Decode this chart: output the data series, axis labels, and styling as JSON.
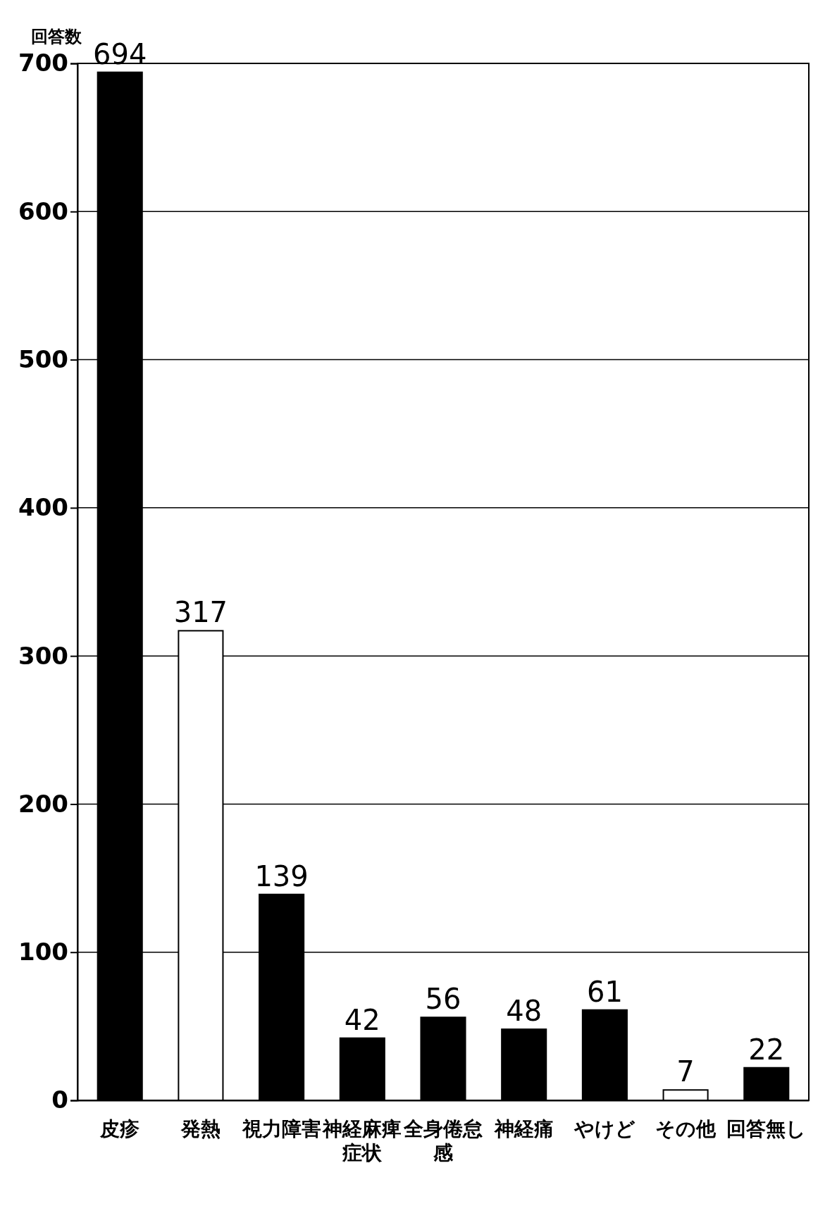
{
  "chart_data": {
    "type": "bar",
    "ylabel": "回答数",
    "categories": [
      "皮疹",
      "発熱",
      "視力障害",
      "神経麻痺症状",
      "全身倦怠感",
      "神経痛",
      "やけど",
      "その他",
      "回答無し"
    ],
    "values": [
      694,
      317,
      139,
      42,
      56,
      48,
      61,
      7,
      22
    ],
    "colors": [
      "#000000",
      "#ffffff",
      "#000000",
      "#000000",
      "#000000",
      "#000000",
      "#000000",
      "#ffffff",
      "#000000"
    ],
    "ylim": [
      0,
      700
    ],
    "yticks": [
      0,
      100,
      200,
      300,
      400,
      500,
      600,
      700
    ],
    "grid": "y",
    "data_labels": true
  }
}
